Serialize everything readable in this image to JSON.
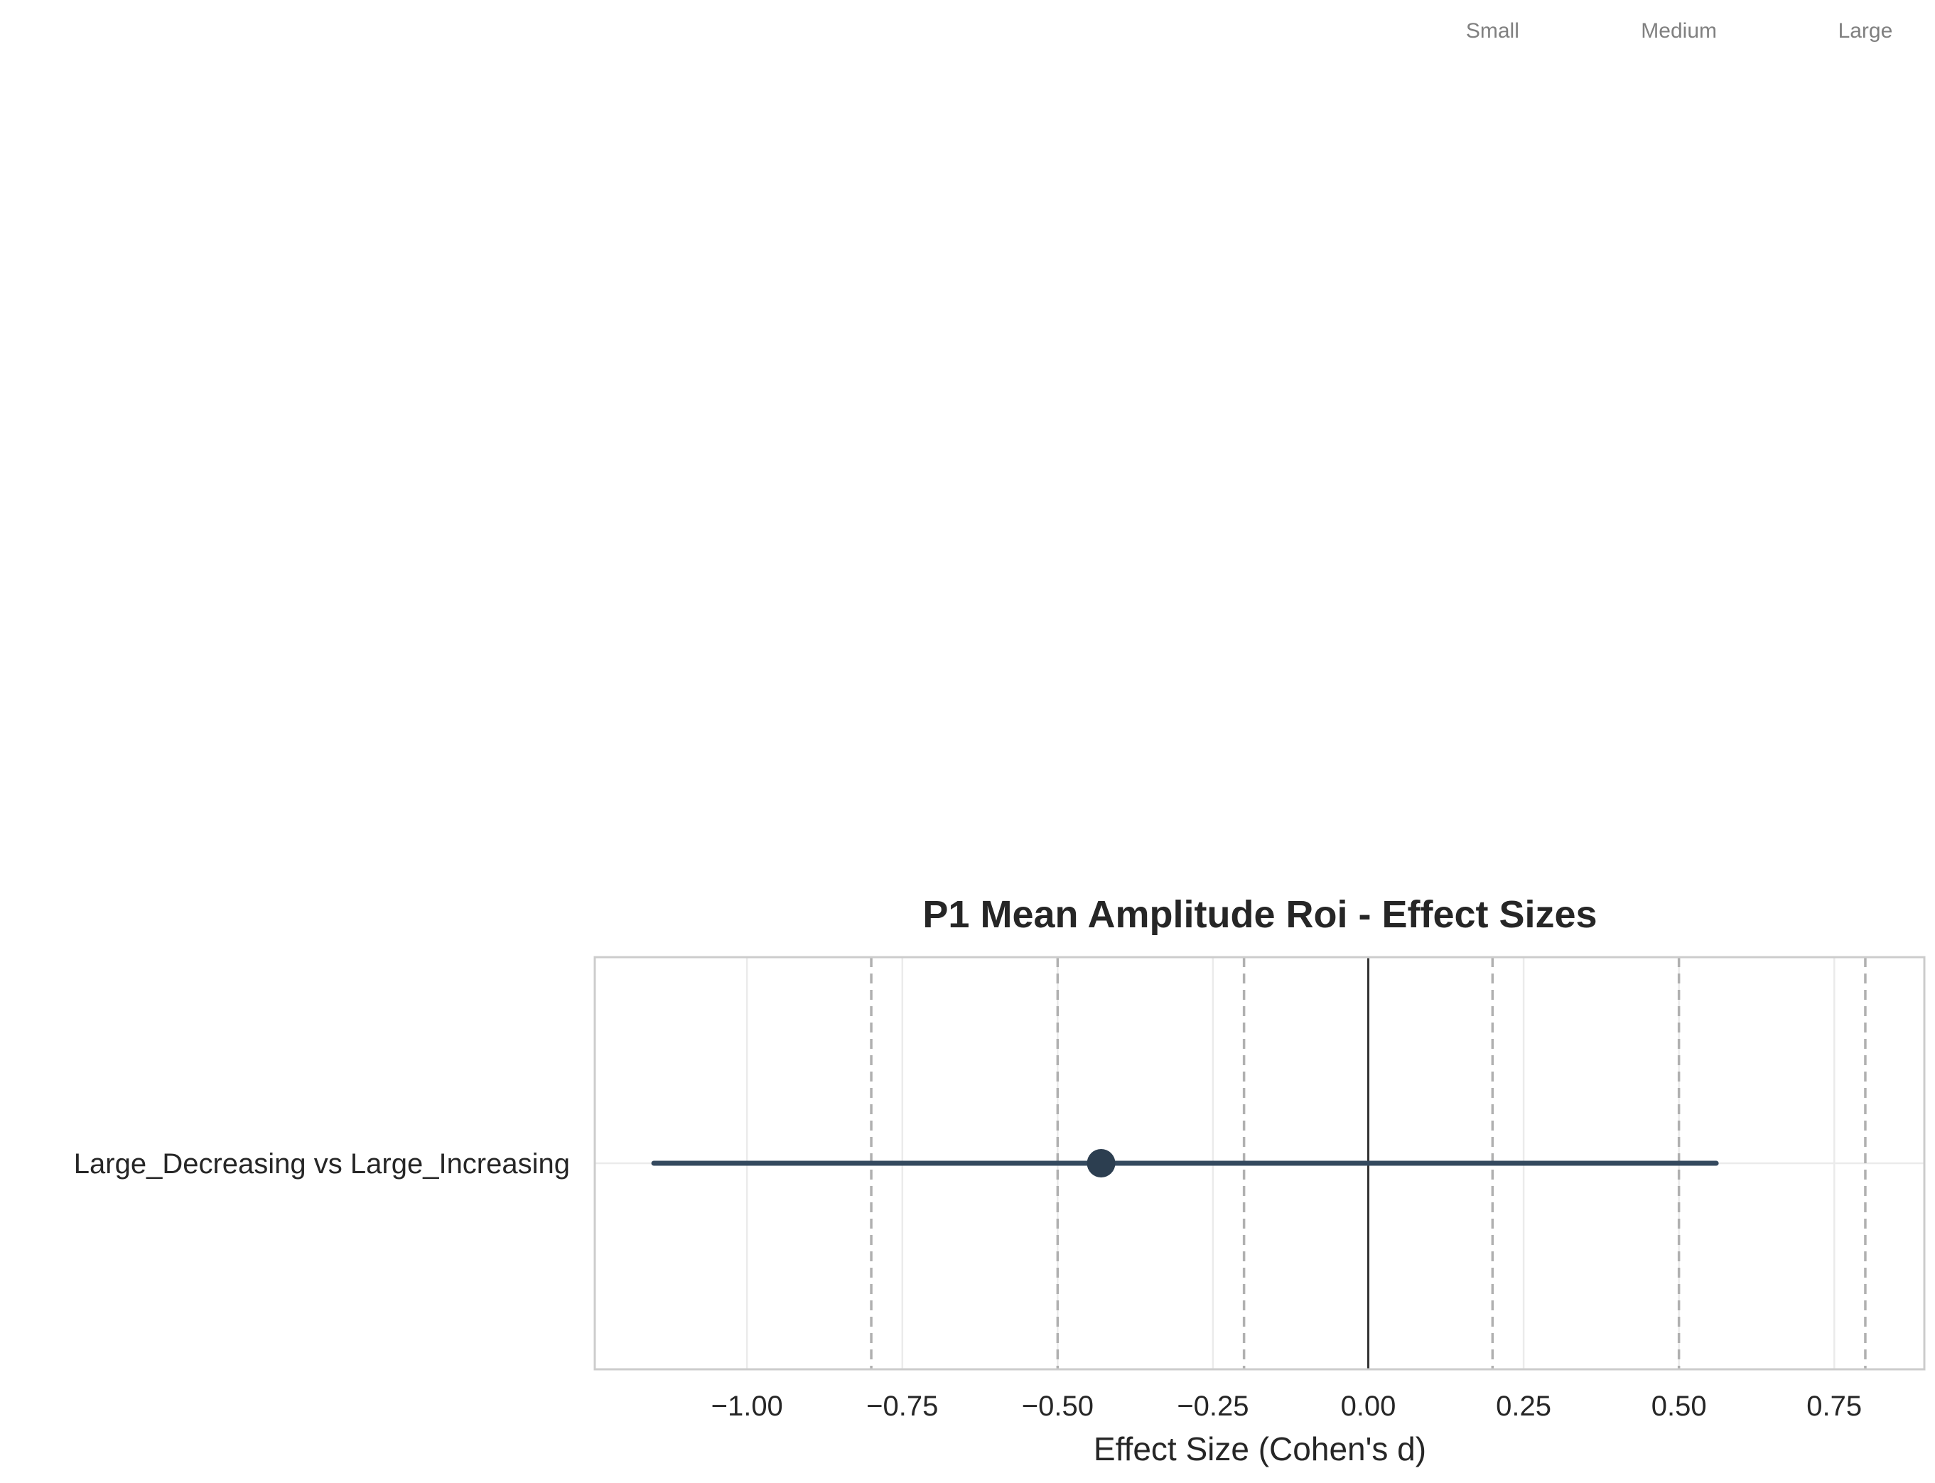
{
  "chart_data": {
    "type": "forest",
    "title": "P1 Mean Amplitude Roi - Effect Sizes",
    "xlabel": "Effect Size (Cohen's d)",
    "ylabel": "",
    "xlim": [
      -1.245,
      0.895
    ],
    "xticks": [
      -1.0,
      -0.75,
      -0.5,
      -0.25,
      0.0,
      0.25,
      0.5,
      0.75
    ],
    "xtick_labels": [
      "−1.00",
      "−0.75",
      "−0.50",
      "−0.25",
      "0.00",
      "0.25",
      "0.50",
      "0.75"
    ],
    "grid": true,
    "rows": [
      {
        "label": "Large_Decreasing vs Large_Increasing",
        "d": -0.43,
        "ci": [
          -1.15,
          0.56
        ]
      }
    ],
    "reference_lines": [
      -0.8,
      -0.5,
      -0.2,
      0.2,
      0.5,
      0.8
    ],
    "zero_line": 0,
    "threshold_labels": [
      {
        "text": "Small",
        "x": 0.2
      },
      {
        "text": "Medium",
        "x": 0.5
      },
      {
        "text": "Large",
        "x": 0.8
      }
    ],
    "colors": {
      "point": "#2c3e50",
      "ci_line": "#34495e",
      "reference": "#b0b0b0",
      "zero_line": "#333333",
      "grid": "#ebebeb",
      "frame": "#cccccc",
      "threshold_text": "#808080",
      "text": "#262626"
    }
  }
}
